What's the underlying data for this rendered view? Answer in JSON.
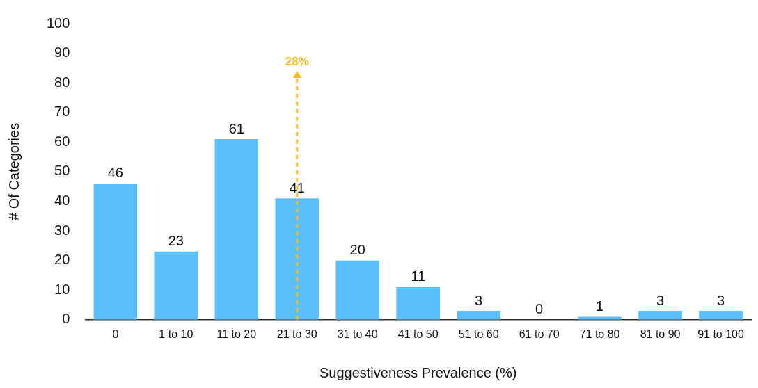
{
  "chart_data": {
    "type": "bar",
    "xlabel": "Suggestiveness Prevalence (%)",
    "ylabel": "# Of Categories",
    "categories": [
      "0",
      "1 to 10",
      "11 to 20",
      "21 to 30",
      "31 to 40",
      "41 to 50",
      "51 to 60",
      "61 to 70",
      "71 to 80",
      "81 to 90",
      "91 to 100"
    ],
    "values": [
      46,
      23,
      61,
      41,
      20,
      11,
      3,
      0,
      1,
      3,
      3
    ],
    "color": "#5bc0fe",
    "ylim": [
      0,
      100
    ],
    "yticks": [
      0,
      10,
      20,
      30,
      40,
      50,
      60,
      70,
      80,
      90,
      100
    ],
    "grid": false,
    "legend": false,
    "data_labels": true,
    "ref_lines": [
      {
        "axis": "x",
        "value": "21 to 30",
        "label": "28%",
        "color": "#f5b82e",
        "line_style": "dashed"
      }
    ]
  }
}
